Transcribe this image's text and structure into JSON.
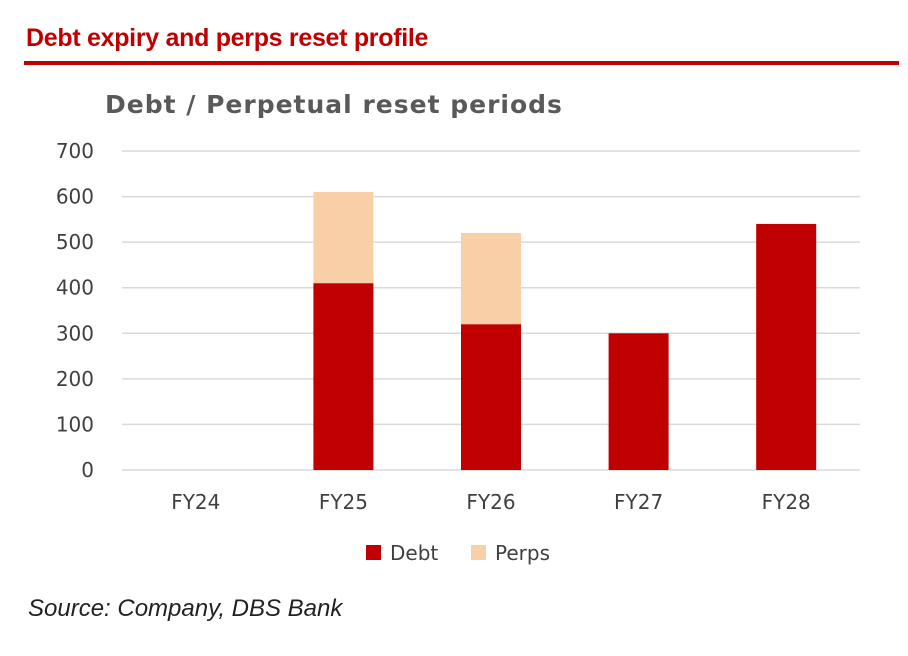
{
  "header": {
    "title": "Debt expiry and perps reset profile"
  },
  "chart_data": {
    "type": "bar",
    "stacked": true,
    "title": "Debt / Perpetual reset periods",
    "xlabel": "",
    "ylabel": "",
    "categories": [
      "FY24",
      "FY25",
      "FY26",
      "FY27",
      "FY28"
    ],
    "series": [
      {
        "name": "Debt",
        "values": [
          0,
          410,
          320,
          300,
          540
        ],
        "color": "#c00000"
      },
      {
        "name": "Perps",
        "values": [
          0,
          200,
          200,
          0,
          0
        ],
        "color": "#f8cfa6"
      }
    ],
    "ylim": [
      0,
      700
    ],
    "yticks": [
      0,
      100,
      200,
      300,
      400,
      500,
      600,
      700
    ],
    "grid": true,
    "legend": "bottom-center"
  },
  "footer": {
    "source": "Source: Company, DBS Bank"
  }
}
